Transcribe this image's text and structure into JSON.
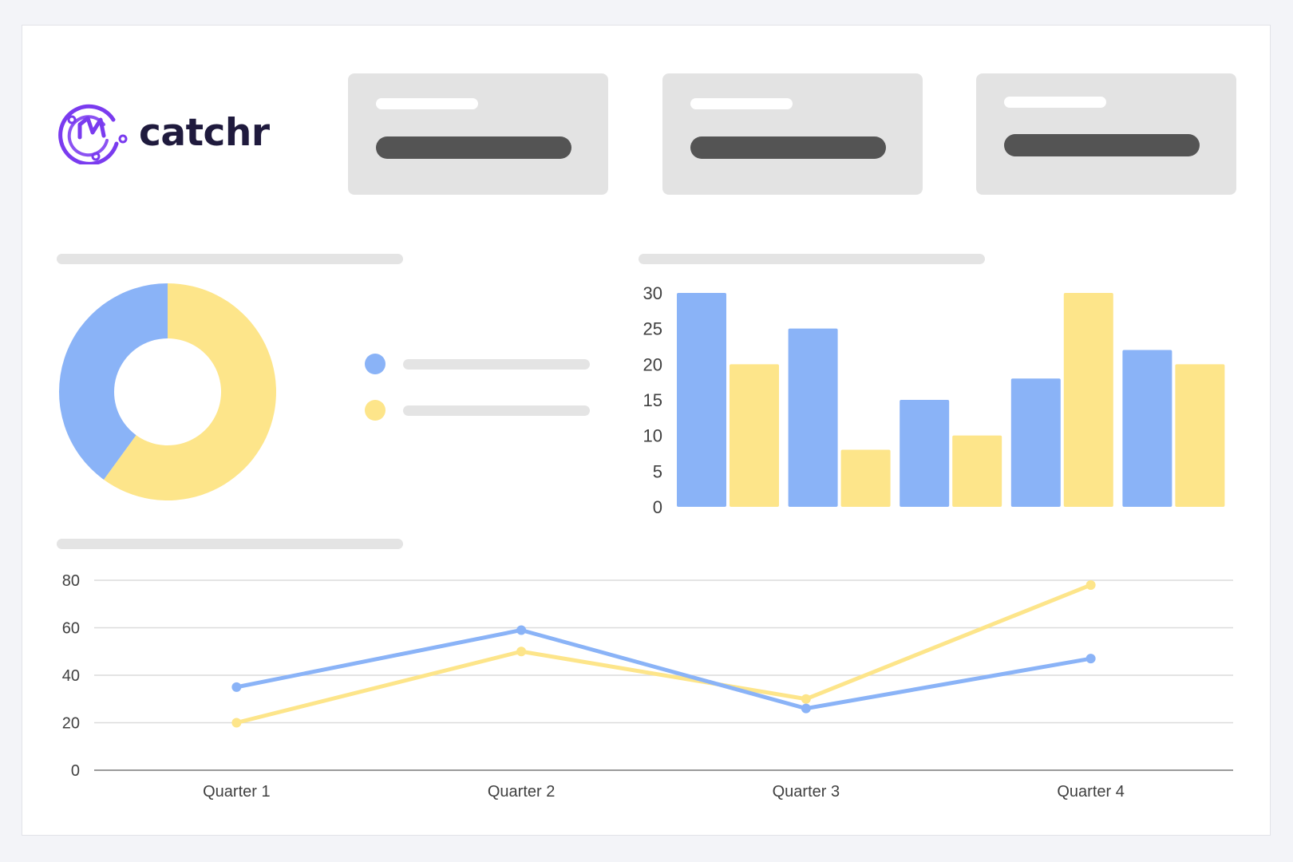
{
  "app": {
    "brand": "catchr"
  },
  "colors": {
    "blue": "#8ab3f7",
    "yellow": "#fde58a",
    "brand_purple": "#7a3bef"
  },
  "chart_data": [
    {
      "type": "pie",
      "variant": "donut",
      "slices": [
        {
          "color": "#8ab3f7",
          "value": 40
        },
        {
          "color": "#fde58a",
          "value": 60
        }
      ]
    },
    {
      "type": "bar",
      "ylim": [
        0,
        30
      ],
      "yticks": [
        0,
        5,
        10,
        15,
        20,
        25,
        30
      ],
      "grid": false,
      "series": [
        {
          "color": "#8ab3f7",
          "values": [
            30,
            25,
            15,
            18,
            22
          ]
        },
        {
          "color": "#fde58a",
          "values": [
            20,
            8,
            10,
            30,
            20
          ]
        }
      ]
    },
    {
      "type": "line",
      "categories": [
        "Quarter 1",
        "Quarter 2",
        "Quarter 3",
        "Quarter 4"
      ],
      "ylim": [
        0,
        80
      ],
      "yticks": [
        0,
        20,
        40,
        60,
        80
      ],
      "grid": true,
      "series": [
        {
          "color": "#8ab3f7",
          "values": [
            35,
            59,
            26,
            47
          ]
        },
        {
          "color": "#fde58a",
          "values": [
            20,
            50,
            30,
            78
          ]
        }
      ]
    }
  ]
}
